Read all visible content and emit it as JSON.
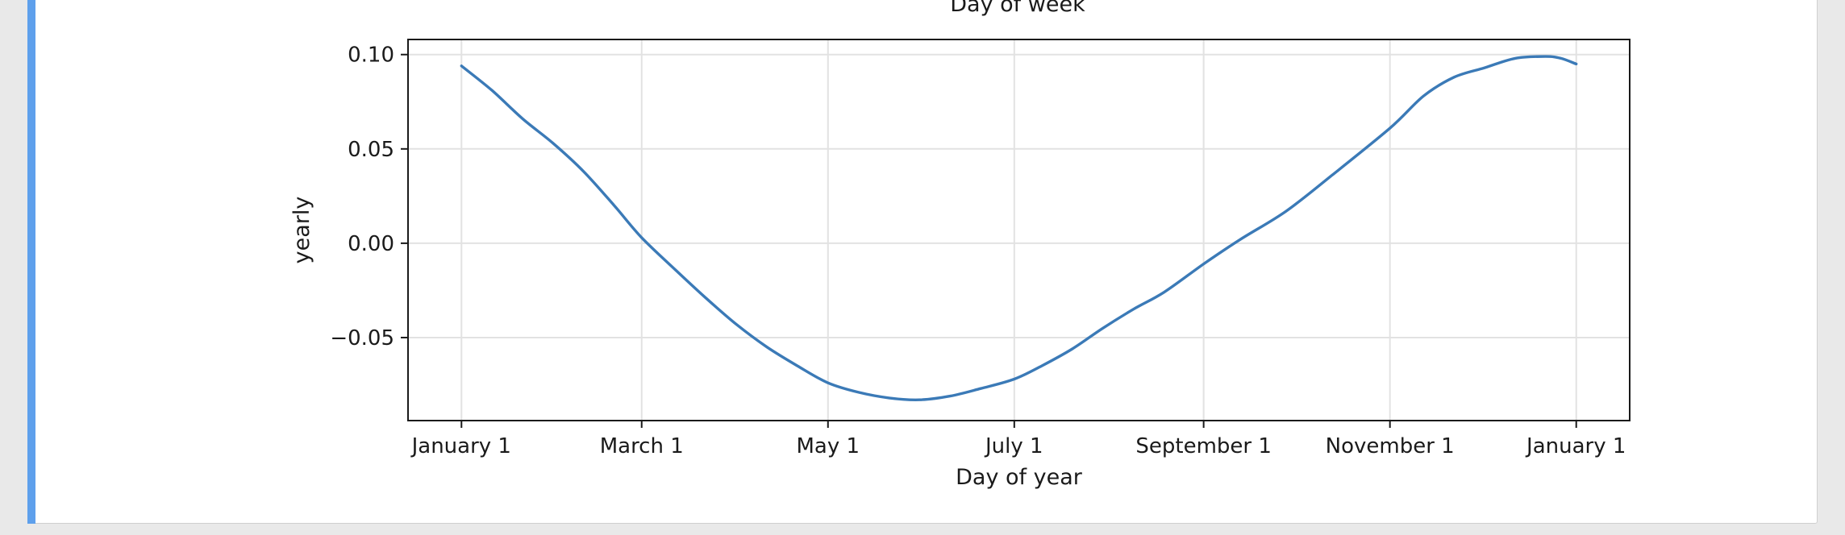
{
  "page": {
    "partial_title_above": "Day of week"
  },
  "chart_data": {
    "type": "line",
    "xlabel": "Day of year",
    "ylabel": "yearly",
    "x_tick_labels": [
      "January 1",
      "March 1",
      "May 1",
      "July 1",
      "September 1",
      "November 1",
      "January 1"
    ],
    "x_tick_days": [
      0,
      59,
      120,
      181,
      243,
      304,
      365
    ],
    "y_tick_labels": [
      "0.10",
      "0.05",
      "0.00",
      "−0.05"
    ],
    "y_tick_values": [
      0.1,
      0.05,
      0.0,
      -0.05
    ],
    "xlim": [
      -17.5,
      382.5
    ],
    "ylim": [
      -0.094,
      0.108
    ],
    "grid": true,
    "line_color": "#3b7ab7",
    "series": [
      {
        "x": [
          0,
          10,
          20,
          30,
          40,
          50,
          59,
          70,
          80,
          90,
          100,
          110,
          120,
          130,
          140,
          150,
          160,
          170,
          181,
          190,
          200,
          210,
          220,
          230,
          243,
          255,
          270,
          285,
          304,
          315,
          325,
          335,
          345,
          355,
          360,
          365
        ],
        "y": [
          0.094,
          0.081,
          0.066,
          0.053,
          0.038,
          0.02,
          0.003,
          -0.014,
          -0.029,
          -0.043,
          -0.055,
          -0.065,
          -0.074,
          -0.079,
          -0.082,
          -0.083,
          -0.081,
          -0.077,
          -0.072,
          -0.065,
          -0.056,
          -0.045,
          -0.035,
          -0.026,
          -0.011,
          0.002,
          0.017,
          0.036,
          0.061,
          0.078,
          0.088,
          0.093,
          0.098,
          0.099,
          0.098,
          0.095
        ]
      }
    ]
  }
}
